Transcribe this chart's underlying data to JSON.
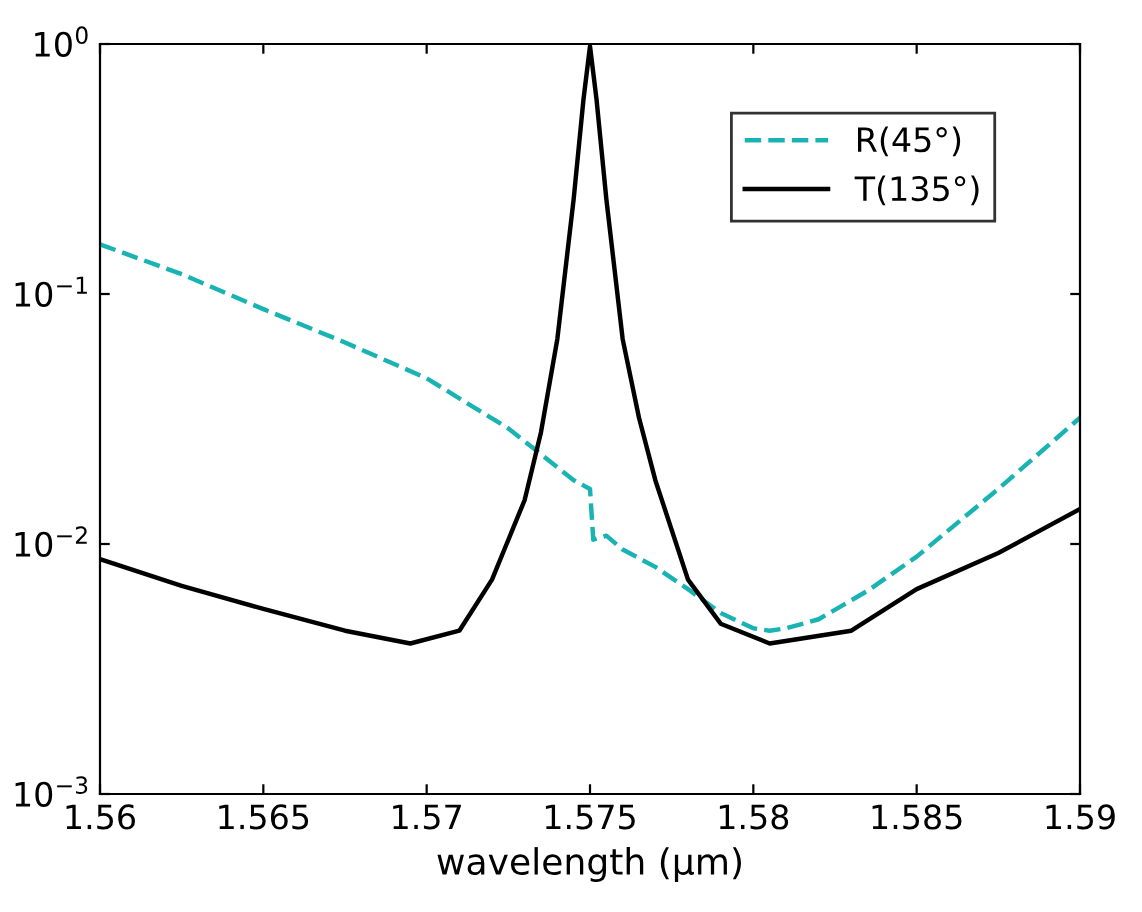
{
  "chart_data": {
    "type": "line",
    "xlabel": "wavelength (μm)",
    "log": "y",
    "xlim": [
      1.56,
      1.59
    ],
    "ylim": [
      0.001,
      1
    ],
    "xticks": [
      1.56,
      1.565,
      1.57,
      1.575,
      1.58,
      1.585,
      1.59
    ],
    "yticks": [
      {
        "value": 0.001,
        "label": "10$^{−3}$"
      },
      {
        "value": 0.01,
        "label": "10$^{−2}$"
      },
      {
        "value": 0.1,
        "label": "10$^{−1}$"
      },
      {
        "value": 1,
        "label": "10$^{0}$"
      }
    ],
    "legend": "top right",
    "grid": false,
    "series": [
      {
        "name": "R(45°)",
        "color": "#1ab3b3",
        "line_style": "dashed",
        "x": [
          1.56,
          1.5625,
          1.565,
          1.5675,
          1.57,
          1.5725,
          1.5745,
          1.575,
          1.5751,
          1.5755,
          1.576,
          1.577,
          1.578,
          1.579,
          1.58,
          1.5805,
          1.581,
          1.582,
          1.5835,
          1.585,
          1.5875,
          1.59
        ],
        "values": [
          0.158,
          0.12,
          0.087,
          0.064,
          0.046,
          0.029,
          0.018,
          0.0166,
          0.0104,
          0.0108,
          0.0095,
          0.0081,
          0.0066,
          0.0053,
          0.0046,
          0.0045,
          0.0046,
          0.005,
          0.0065,
          0.0089,
          0.0166,
          0.032
        ]
      },
      {
        "name": "T(135°)",
        "color": "#000000",
        "line_style": "solid",
        "x": [
          1.56,
          1.5625,
          1.565,
          1.5675,
          1.5695,
          1.571,
          1.572,
          1.573,
          1.5735,
          1.574,
          1.5745,
          1.5748,
          1.575,
          1.5752,
          1.5755,
          1.576,
          1.5765,
          1.577,
          1.578,
          1.579,
          1.5805,
          1.583,
          1.585,
          1.5875,
          1.59
        ],
        "values": [
          0.0087,
          0.0068,
          0.0055,
          0.0045,
          0.004,
          0.0045,
          0.0072,
          0.015,
          0.028,
          0.066,
          0.24,
          0.6,
          0.98,
          0.6,
          0.24,
          0.066,
          0.032,
          0.018,
          0.0072,
          0.0048,
          0.004,
          0.0045,
          0.0066,
          0.0092,
          0.0138
        ]
      }
    ]
  }
}
